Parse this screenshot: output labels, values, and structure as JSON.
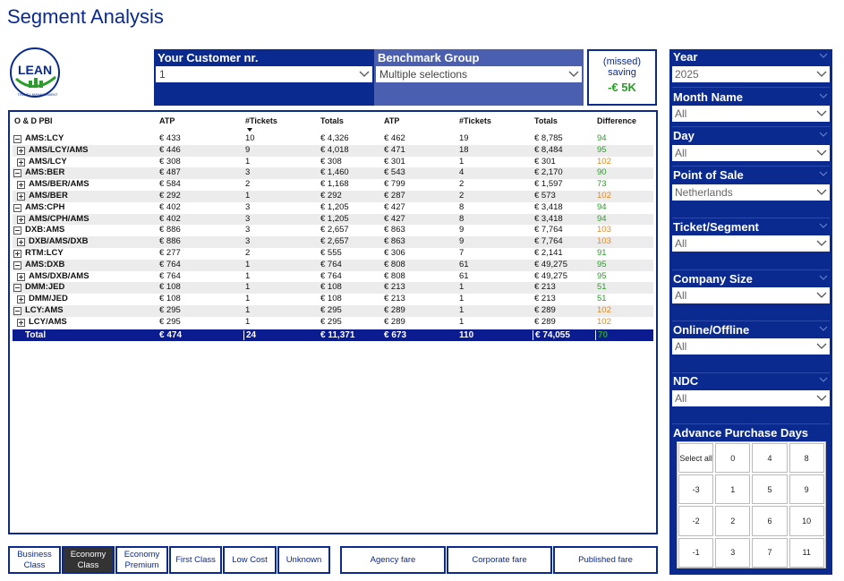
{
  "page": {
    "title": "Segment Analysis"
  },
  "logo": {
    "text": "LEAN",
    "subtext": "TRAVEL MANAGEMENT"
  },
  "header": {
    "customer": {
      "label": "Your Customer nr.",
      "value": "1"
    },
    "benchmark": {
      "label": "Benchmark Group",
      "value": "Multiple selections"
    },
    "saving": {
      "line1": "(missed)",
      "line2": "saving",
      "value": "-€ 5K"
    }
  },
  "table": {
    "columns": [
      "O & D PBI",
      "ATP",
      "#Tickets",
      "Totals",
      "ATP",
      "#Tickets",
      "Totals",
      "Difference"
    ],
    "rows": [
      {
        "name": "AMS:LCY",
        "level": 0,
        "toggle": "minus",
        "atp1": "€ 433",
        "t1": "10",
        "tot1": "€ 4,326",
        "atp2": "€ 462",
        "t2": "19",
        "tot2": "€ 8,785",
        "diff": "94",
        "diffColor": "green"
      },
      {
        "name": "AMS/LCY/AMS",
        "level": 1,
        "toggle": "plus",
        "atp1": "€ 446",
        "t1": "9",
        "tot1": "€ 4,018",
        "atp2": "€ 471",
        "t2": "18",
        "tot2": "€ 8,484",
        "diff": "95",
        "diffColor": "green"
      },
      {
        "name": "AMS/LCY",
        "level": 1,
        "toggle": "plus",
        "atp1": "€ 308",
        "t1": "1",
        "tot1": "€ 308",
        "atp2": "€ 301",
        "t2": "1",
        "tot2": "€ 301",
        "diff": "102",
        "diffColor": "orange"
      },
      {
        "name": "AMS:BER",
        "level": 0,
        "toggle": "minus",
        "atp1": "€ 487",
        "t1": "3",
        "tot1": "€ 1,460",
        "atp2": "€ 543",
        "t2": "4",
        "tot2": "€ 2,170",
        "diff": "90",
        "diffColor": "green"
      },
      {
        "name": "AMS/BER/AMS",
        "level": 1,
        "toggle": "plus",
        "atp1": "€ 584",
        "t1": "2",
        "tot1": "€ 1,168",
        "atp2": "€ 799",
        "t2": "2",
        "tot2": "€ 1,597",
        "diff": "73",
        "diffColor": "green"
      },
      {
        "name": "AMS/BER",
        "level": 1,
        "toggle": "plus",
        "atp1": "€ 292",
        "t1": "1",
        "tot1": "€ 292",
        "atp2": "€ 287",
        "t2": "2",
        "tot2": "€ 573",
        "diff": "102",
        "diffColor": "orange"
      },
      {
        "name": "AMS:CPH",
        "level": 0,
        "toggle": "minus",
        "atp1": "€ 402",
        "t1": "3",
        "tot1": "€ 1,205",
        "atp2": "€ 427",
        "t2": "8",
        "tot2": "€ 3,418",
        "diff": "94",
        "diffColor": "green"
      },
      {
        "name": "AMS/CPH/AMS",
        "level": 1,
        "toggle": "plus",
        "atp1": "€ 402",
        "t1": "3",
        "tot1": "€ 1,205",
        "atp2": "€ 427",
        "t2": "8",
        "tot2": "€ 3,418",
        "diff": "94",
        "diffColor": "green"
      },
      {
        "name": "DXB:AMS",
        "level": 0,
        "toggle": "minus",
        "atp1": "€ 886",
        "t1": "3",
        "tot1": "€ 2,657",
        "atp2": "€ 863",
        "t2": "9",
        "tot2": "€ 7,764",
        "diff": "103",
        "diffColor": "orange"
      },
      {
        "name": "DXB/AMS/DXB",
        "level": 1,
        "toggle": "plus",
        "atp1": "€ 886",
        "t1": "3",
        "tot1": "€ 2,657",
        "atp2": "€ 863",
        "t2": "9",
        "tot2": "€ 7,764",
        "diff": "103",
        "diffColor": "orange"
      },
      {
        "name": "RTM:LCY",
        "level": 0,
        "toggle": "plus",
        "atp1": "€ 277",
        "t1": "2",
        "tot1": "€ 555",
        "atp2": "€ 306",
        "t2": "7",
        "tot2": "€ 2,141",
        "diff": "91",
        "diffColor": "green"
      },
      {
        "name": "AMS:DXB",
        "level": 0,
        "toggle": "minus",
        "atp1": "€ 764",
        "t1": "1",
        "tot1": "€ 764",
        "atp2": "€ 808",
        "t2": "61",
        "tot2": "€ 49,275",
        "diff": "95",
        "diffColor": "green"
      },
      {
        "name": "AMS/DXB/AMS",
        "level": 1,
        "toggle": "plus",
        "atp1": "€ 764",
        "t1": "1",
        "tot1": "€ 764",
        "atp2": "€ 808",
        "t2": "61",
        "tot2": "€ 49,275",
        "diff": "95",
        "diffColor": "green"
      },
      {
        "name": "DMM:JED",
        "level": 0,
        "toggle": "minus",
        "atp1": "€ 108",
        "t1": "1",
        "tot1": "€ 108",
        "atp2": "€ 213",
        "t2": "1",
        "tot2": "€ 213",
        "diff": "51",
        "diffColor": "green"
      },
      {
        "name": "DMM/JED",
        "level": 1,
        "toggle": "plus",
        "atp1": "€ 108",
        "t1": "1",
        "tot1": "€ 108",
        "atp2": "€ 213",
        "t2": "1",
        "tot2": "€ 213",
        "diff": "51",
        "diffColor": "green"
      },
      {
        "name": "LCY:AMS",
        "level": 0,
        "toggle": "minus",
        "atp1": "€ 295",
        "t1": "1",
        "tot1": "€ 295",
        "atp2": "€ 289",
        "t2": "1",
        "tot2": "€ 289",
        "diff": "102",
        "diffColor": "orange"
      },
      {
        "name": "LCY/AMS",
        "level": 1,
        "toggle": "plus",
        "atp1": "€ 295",
        "t1": "1",
        "tot1": "€ 295",
        "atp2": "€ 289",
        "t2": "1",
        "tot2": "€ 289",
        "diff": "102",
        "diffColor": "orange"
      }
    ],
    "total": {
      "name": "Total",
      "atp1": "€ 474",
      "t1": "24",
      "tot1": "€ 11,371",
      "atp2": "€ 673",
      "t2": "110",
      "tot2": "€ 74,055",
      "diff": "70"
    }
  },
  "class_buttons": [
    "Business Class",
    "Economy Class",
    "Economy Premium",
    "First Class",
    "Low Cost",
    "Unknown"
  ],
  "class_active": "Economy Class",
  "fare_buttons": [
    "Agency fare",
    "Corporate fare",
    "Published fare"
  ],
  "slicers": {
    "year": {
      "label": "Year",
      "value": "2025"
    },
    "month": {
      "label": "Month Name",
      "value": "All"
    },
    "day": {
      "label": "Day",
      "value": "All"
    },
    "pos": {
      "label": "Point of Sale",
      "value": "Netherlands"
    },
    "ticket": {
      "label": "Ticket/Segment",
      "value": "All"
    },
    "company": {
      "label": "Company Size",
      "value": "All"
    },
    "online": {
      "label": "Online/Offline",
      "value": "All"
    },
    "ndc": {
      "label": "NDC",
      "value": "All"
    },
    "apd": {
      "label": "Advance Purchase Days",
      "cells": [
        [
          "Select all",
          "0",
          "4",
          "8"
        ],
        [
          "-3",
          "1",
          "5",
          "9"
        ],
        [
          "-2",
          "2",
          "6",
          "10"
        ],
        [
          "-1",
          "3",
          "7",
          "11"
        ]
      ]
    }
  },
  "colors": {
    "navy": "#0a2a8f",
    "benchmark_bg": "#4a5fb0",
    "green": "#2a9d2a",
    "orange": "#e08a1e"
  }
}
